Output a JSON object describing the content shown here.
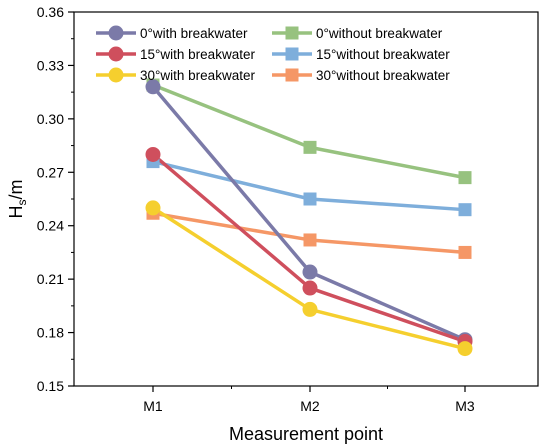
{
  "chart_data": {
    "type": "line",
    "title": "",
    "xlabel": "Measurement point",
    "ylabel": {
      "main": "H",
      "sub": "s",
      "unit": "/m"
    },
    "categories": [
      "M1",
      "M2",
      "M3"
    ],
    "ylim": [
      0.15,
      0.36
    ],
    "yticks": [
      "0.15",
      "0.18",
      "0.21",
      "0.24",
      "0.27",
      "0.30",
      "0.33",
      "0.36"
    ],
    "grid": false,
    "legend_position": "top",
    "series": [
      {
        "name": "0°with breakwater",
        "marker": "circle",
        "color": "#7b7aa8",
        "values": [
          0.318,
          0.214,
          0.176
        ]
      },
      {
        "name": "15°with breakwater",
        "marker": "circle",
        "color": "#cf4f5d",
        "values": [
          0.28,
          0.205,
          0.175
        ]
      },
      {
        "name": "30°with breakwater",
        "marker": "circle",
        "color": "#f5cf2e",
        "values": [
          0.25,
          0.193,
          0.171
        ]
      },
      {
        "name": "0°without breakwater",
        "marker": "square",
        "color": "#97c27f",
        "values": [
          0.319,
          0.284,
          0.267
        ]
      },
      {
        "name": "15°without breakwater",
        "marker": "square",
        "color": "#7eaedb",
        "values": [
          0.276,
          0.255,
          0.249
        ]
      },
      {
        "name": "30°without breakwater",
        "marker": "square",
        "color": "#f59766",
        "values": [
          0.247,
          0.232,
          0.225
        ]
      }
    ]
  }
}
